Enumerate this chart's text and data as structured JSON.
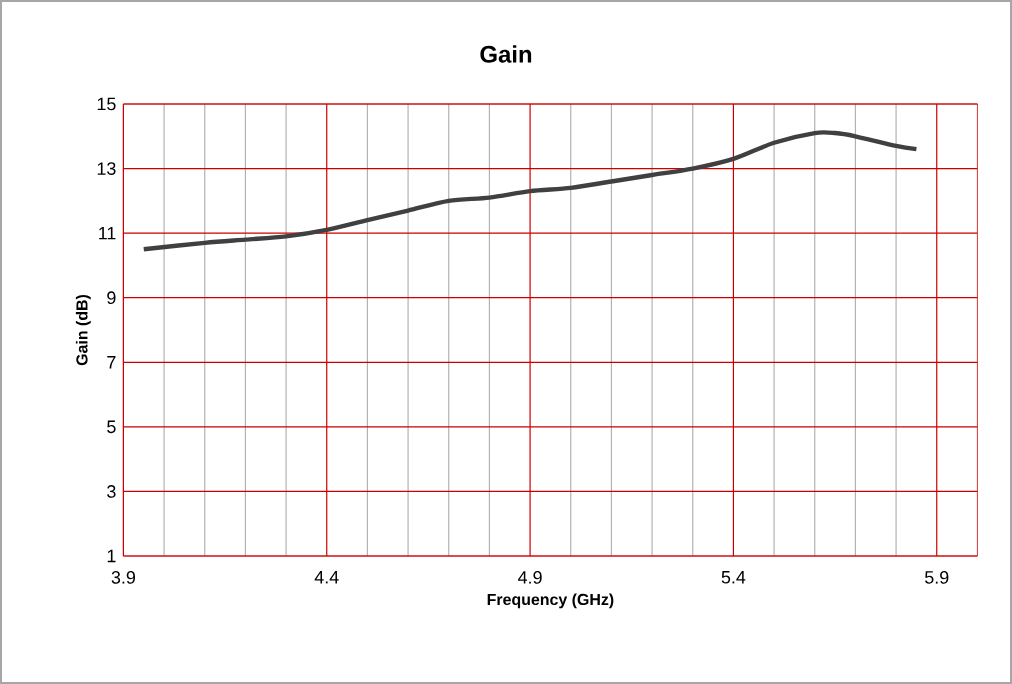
{
  "chart_data": {
    "type": "line",
    "title": "Gain",
    "xlabel": "Frequency (GHz)",
    "ylabel": "Gain (dB)",
    "x": [
      3.95,
      4.1,
      4.2,
      4.3,
      4.4,
      4.5,
      4.6,
      4.7,
      4.8,
      4.9,
      5.0,
      5.1,
      5.2,
      5.3,
      5.4,
      5.5,
      5.6,
      5.65,
      5.7,
      5.8,
      5.85
    ],
    "values": [
      10.5,
      10.7,
      10.8,
      10.9,
      11.1,
      11.4,
      11.7,
      12.0,
      12.1,
      12.3,
      12.4,
      12.6,
      12.8,
      13.0,
      13.3,
      13.8,
      14.1,
      14.1,
      14.0,
      13.7,
      13.6
    ],
    "color": "#404040",
    "xlim": [
      3.9,
      6.0
    ],
    "ylim": [
      1,
      15
    ],
    "xticks": [
      3.9,
      4.4,
      4.9,
      5.4,
      5.9
    ],
    "yticks": [
      1,
      3,
      5,
      7,
      9,
      11,
      13,
      15
    ],
    "grid": true,
    "marker": "none",
    "line_style": "solid"
  }
}
